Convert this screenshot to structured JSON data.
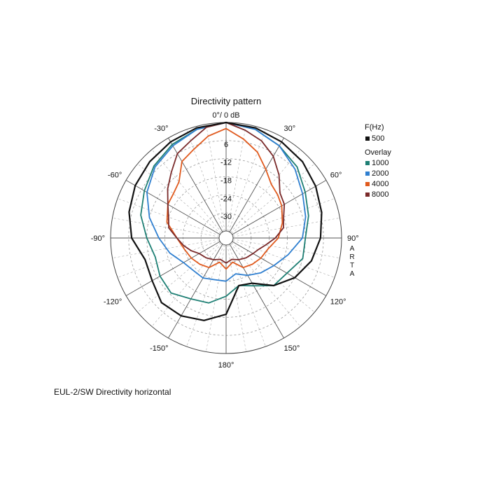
{
  "chart_data": {
    "type": "polar-line",
    "title": "Directivity pattern",
    "top_label": "0°/ 0 dB",
    "watermark": "ARTA",
    "caption": "EUL-2/SW  Directivity horizontal",
    "radial_ticks": [
      "6",
      "-12",
      "-18",
      "-24",
      "-30"
    ],
    "radial_range": [
      -36,
      0
    ],
    "angle_labels": [
      "-30°",
      "30°",
      "-60°",
      "60°",
      "-90°",
      "90°",
      "-120°",
      "120°",
      "-150°",
      "150°",
      "180°"
    ],
    "legend": {
      "header": "F(Hz)",
      "main": {
        "name": "500",
        "color": "#111111"
      },
      "overlay_header": "Overlay",
      "overlays": [
        {
          "name": "1000",
          "color": "#1e7f74"
        },
        {
          "name": "2000",
          "color": "#2f7fd0"
        },
        {
          "name": "4000",
          "color": "#e05a1e"
        },
        {
          "name": "8000",
          "color": "#7a2a2a"
        }
      ]
    },
    "series": [
      {
        "name": "500",
        "color": "#111111",
        "angles": [
          0,
          15,
          30,
          45,
          60,
          75,
          90,
          105,
          120,
          135,
          150,
          165,
          180,
          195,
          210,
          225,
          240,
          255,
          270,
          285,
          300,
          315,
          330,
          345
        ],
        "db": [
          0,
          -0.5,
          -1.5,
          -2.5,
          -4,
          -5.5,
          -7,
          -9,
          -12,
          -16,
          -21,
          -22,
          -13,
          -10,
          -8.5,
          -8,
          -10,
          -10.5,
          -7,
          -5,
          -3.5,
          -2.5,
          -1.5,
          -0.5
        ]
      },
      {
        "name": "1000",
        "color": "#1e7f74",
        "angles": [
          0,
          15,
          30,
          45,
          60,
          75,
          90,
          105,
          120,
          135,
          150,
          165,
          180,
          195,
          210,
          225,
          240,
          255,
          270,
          285,
          300,
          315,
          330,
          345
        ],
        "db": [
          0,
          -1,
          -3,
          -5,
          -8,
          -10,
          -12,
          -12,
          -15,
          -16,
          -20,
          -22,
          -19,
          -16,
          -15,
          -12.5,
          -13,
          -14,
          -12,
          -9,
          -7,
          -4.5,
          -2.5,
          -1
        ]
      },
      {
        "name": "2000",
        "color": "#2f7fd0",
        "angles": [
          0,
          15,
          30,
          45,
          60,
          75,
          90,
          105,
          120,
          135,
          150,
          165,
          180,
          195,
          210,
          225,
          240,
          255,
          270,
          285,
          300,
          315,
          330,
          345
        ],
        "db": [
          0,
          -1,
          -3,
          -6,
          -9,
          -11,
          -13,
          -17,
          -20,
          -22,
          -24,
          -26,
          -24,
          -24,
          -23,
          -23,
          -22,
          -19,
          -16,
          -12,
          -8,
          -5,
          -3,
          -1
        ]
      },
      {
        "name": "4000",
        "color": "#e05a1e",
        "angles": [
          0,
          10,
          20,
          30,
          40,
          50,
          60,
          75,
          90,
          105,
          120,
          135,
          150,
          165,
          180,
          195,
          210,
          225,
          240,
          255,
          270,
          285,
          300,
          310,
          320,
          330,
          340,
          350
        ],
        "db": [
          -2,
          -5,
          -8,
          -12,
          -15,
          -16,
          -17,
          -19,
          -21,
          -24,
          -25,
          -26,
          -27,
          -30,
          -28,
          -30,
          -27,
          -26,
          -25,
          -24,
          -22,
          -18,
          -16,
          -15.5,
          -14,
          -9,
          -7,
          -4
        ]
      },
      {
        "name": "8000",
        "color": "#7a2a2a",
        "angles": [
          0,
          10,
          20,
          30,
          40,
          50,
          60,
          70,
          80,
          90,
          100,
          110,
          120,
          135,
          150,
          165,
          180,
          195,
          210,
          225,
          240,
          250,
          260,
          270,
          280,
          290,
          300,
          310,
          320,
          330,
          340,
          350
        ],
        "db": [
          0,
          -2,
          -4,
          -7,
          -11,
          -15,
          -16,
          -18,
          -19,
          -22,
          -25,
          -27,
          -28,
          -29,
          -30,
          -31,
          -30,
          -31,
          -30,
          -29,
          -28,
          -26,
          -24,
          -22,
          -19,
          -18,
          -16,
          -13,
          -10,
          -6,
          -4,
          -1
        ]
      }
    ]
  }
}
